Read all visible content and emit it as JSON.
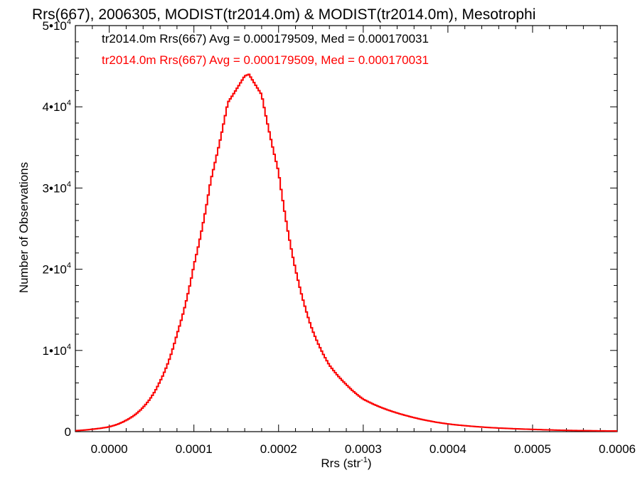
{
  "chart_data": {
    "type": "histogram",
    "title": "Rrs(667), 2006305, MODIST(tr2014.0m) & MODIST(tr2014.0m), Mesotrophi",
    "xlabel": {
      "base": "Rrs (str",
      "sup": "-1",
      "tail": ")"
    },
    "ylabel": "Number of Observations",
    "xlim": [
      -4e-05,
      0.0006
    ],
    "ylim": [
      0,
      50000
    ],
    "x_ticks": [
      {
        "value": 0.0,
        "label": "0.0000"
      },
      {
        "value": 0.0001,
        "label": "0.0001"
      },
      {
        "value": 0.0002,
        "label": "0.0002"
      },
      {
        "value": 0.0003,
        "label": "0.0003"
      },
      {
        "value": 0.0004,
        "label": "0.0004"
      },
      {
        "value": 0.0005,
        "label": "0.0005"
      },
      {
        "value": 0.0006,
        "label": "0.0006"
      }
    ],
    "y_ticks": [
      {
        "value": 0,
        "label": "0",
        "mantissa": "",
        "exp": ""
      },
      {
        "value": 10000,
        "label": "1•10",
        "mantissa": "1",
        "exp": "4"
      },
      {
        "value": 20000,
        "label": "2•10",
        "mantissa": "2",
        "exp": "4"
      },
      {
        "value": 30000,
        "label": "3•10",
        "mantissa": "3",
        "exp": "4"
      },
      {
        "value": 40000,
        "label": "4•10",
        "mantissa": "4",
        "exp": "4"
      },
      {
        "value": 50000,
        "label": "5•10",
        "mantissa": "5",
        "exp": "4"
      }
    ],
    "grid": false,
    "legend_position": "top-left",
    "series": [
      {
        "name": "tr2014.0m Rrs(667) Avg = 0.000179509, Med = 0.000170031",
        "color": "#000000",
        "peak_x": 0.000165,
        "peak_y": 44000,
        "x": [
          -4e-05,
          -2e-05,
          0.0,
          2e-05,
          4e-05,
          6e-05,
          8e-05,
          0.0001,
          0.00012,
          0.00014,
          0.00016,
          0.000165,
          0.00018,
          0.0002,
          0.00022,
          0.00024,
          0.00026,
          0.00028,
          0.0003,
          0.00035,
          0.0004,
          0.00045,
          0.0005,
          0.00055,
          0.0006
        ],
        "y": [
          120,
          300,
          600,
          1400,
          3000,
          6200,
          12000,
          20500,
          31000,
          40500,
          43800,
          44000,
          41500,
          32000,
          20000,
          12500,
          8200,
          5800,
          4000,
          2000,
          950,
          500,
          280,
          140,
          80
        ]
      },
      {
        "name": "tr2014.0m Rrs(667) Avg = 0.000179509, Med = 0.000170031",
        "color": "#ff0000",
        "peak_x": 0.000165,
        "peak_y": 44000,
        "x": [
          -4e-05,
          -2e-05,
          0.0,
          2e-05,
          4e-05,
          6e-05,
          8e-05,
          0.0001,
          0.00012,
          0.00014,
          0.00016,
          0.000165,
          0.00018,
          0.0002,
          0.00022,
          0.00024,
          0.00026,
          0.00028,
          0.0003,
          0.00035,
          0.0004,
          0.00045,
          0.0005,
          0.00055,
          0.0006
        ],
        "y": [
          120,
          300,
          600,
          1400,
          3000,
          6200,
          12000,
          20500,
          31000,
          40500,
          43800,
          44000,
          41500,
          32000,
          20000,
          12500,
          8200,
          5800,
          4000,
          2000,
          950,
          500,
          280,
          140,
          80
        ]
      }
    ]
  }
}
